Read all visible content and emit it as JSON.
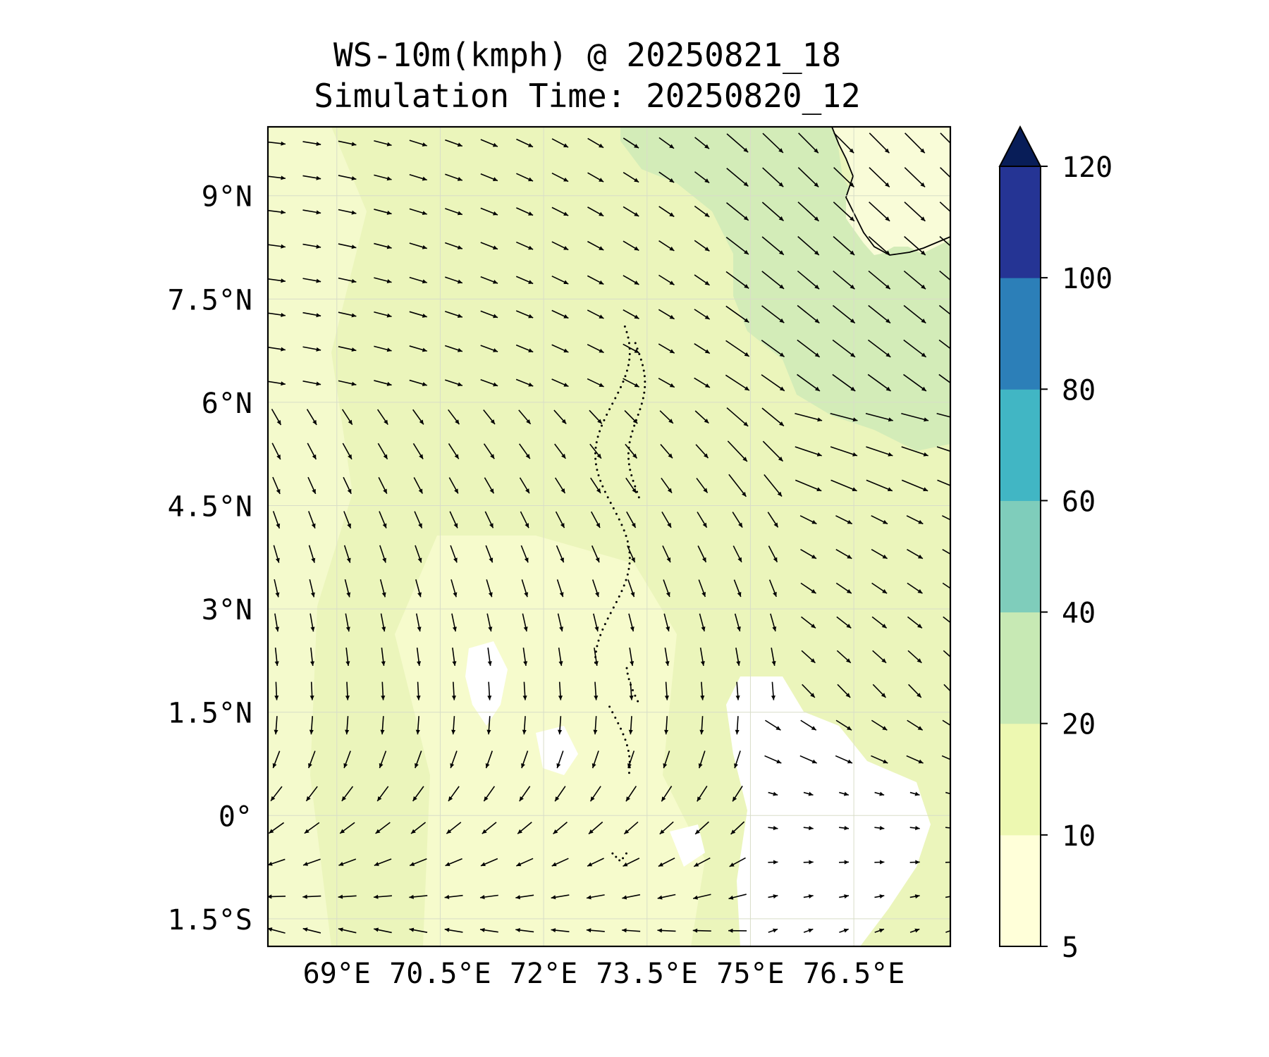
{
  "title": {
    "line1": "WS-10m(kmph) @ 20250821_18",
    "line2": "Simulation Time: 20250820_12"
  },
  "map": {
    "lat_labels": [
      "9°N",
      "7.5°N",
      "6°N",
      "4.5°N",
      "3°N",
      "1.5°N",
      "0°",
      "1.5°S"
    ],
    "lat_values": [
      9,
      7.5,
      6,
      4.5,
      3,
      1.5,
      0,
      -1.5
    ],
    "lon_labels": [
      "69°E",
      "70.5°E",
      "72°E",
      "73.5°E",
      "75°E",
      "76.5°E"
    ],
    "lon_values": [
      69,
      70.5,
      72,
      73.5,
      75,
      76.5
    ],
    "lon_range": [
      68.0,
      77.9
    ],
    "lat_range": [
      -1.9,
      10.0
    ],
    "gridlines": true,
    "field": "10 m wind speed (kmph) shaded, wind direction arrows",
    "coastline": "southwest India (top-right)",
    "islands": "Maldives atoll chain (dotted)"
  },
  "colorbar": {
    "levels": [
      5,
      10,
      20,
      40,
      60,
      80,
      100,
      120
    ],
    "tick_labels": [
      "5",
      "10",
      "20",
      "40",
      "60",
      "80",
      "100",
      "120"
    ],
    "colors": [
      "#ffffd9",
      "#edf8b1",
      "#c7e9b4",
      "#7fcdbb",
      "#41b6c4",
      "#2c7fb8",
      "#253494",
      "#081d58"
    ],
    "extend": "max"
  },
  "colors": {
    "white_region": "#ffffff",
    "light_region": "#f6fbcc",
    "mid_region": "#ebf5bb",
    "strong_region": "#d3ecb8"
  }
}
